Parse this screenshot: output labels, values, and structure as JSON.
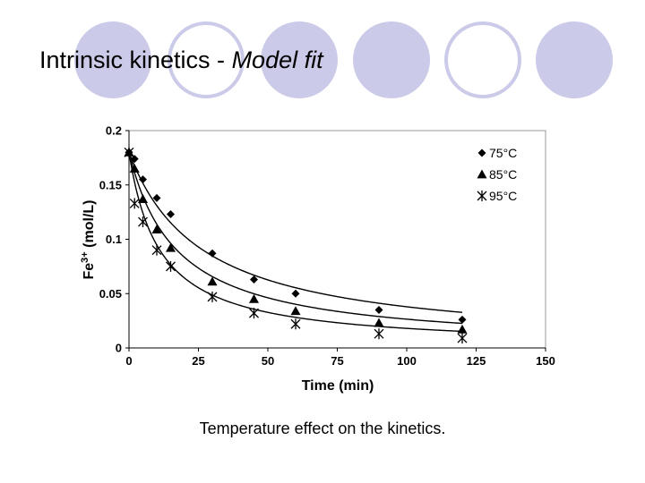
{
  "slide": {
    "title_main": "Intrinsic kinetics - ",
    "title_italic": "Model fit",
    "caption": "Temperature effect on the kinetics."
  },
  "colors": {
    "circle_fill": "#cbcbe9",
    "plot_border": "#9a9a9a",
    "text": "#000000"
  },
  "chart_data": {
    "type": "scatter",
    "title": "",
    "xlabel": "Time (min)",
    "ylabel_base": "Fe",
    "ylabel_sup": "3+",
    "ylabel_unit": " (mol/L)",
    "xlim": [
      0,
      150
    ],
    "ylim": [
      0,
      0.2
    ],
    "x_ticks": [
      "0",
      "25",
      "50",
      "75",
      "100",
      "125",
      "150"
    ],
    "y_ticks": [
      "0",
      "0.05",
      "0.1",
      "0.15",
      "0.2"
    ],
    "legend_position": "top-right",
    "series": [
      {
        "name": "75°C",
        "marker": "diamond",
        "points": [
          [
            0,
            0.18
          ],
          [
            2,
            0.174
          ],
          [
            5,
            0.155
          ],
          [
            10,
            0.138
          ],
          [
            15,
            0.123
          ],
          [
            30,
            0.087
          ],
          [
            45,
            0.063
          ],
          [
            60,
            0.05
          ],
          [
            90,
            0.035
          ],
          [
            120,
            0.026
          ]
        ],
        "fit_k": 0.0375
      },
      {
        "name": "85°C",
        "marker": "triangle",
        "points": [
          [
            0,
            0.18
          ],
          [
            2,
            0.165
          ],
          [
            5,
            0.137
          ],
          [
            10,
            0.109
          ],
          [
            15,
            0.092
          ],
          [
            30,
            0.061
          ],
          [
            45,
            0.045
          ],
          [
            60,
            0.034
          ],
          [
            90,
            0.023
          ],
          [
            120,
            0.017
          ]
        ],
        "fit_k": 0.058
      },
      {
        "name": "95°C",
        "marker": "asterisk",
        "points": [
          [
            0,
            0.18
          ],
          [
            2,
            0.133
          ],
          [
            5,
            0.116
          ],
          [
            10,
            0.09
          ],
          [
            15,
            0.075
          ],
          [
            30,
            0.047
          ],
          [
            45,
            0.032
          ],
          [
            60,
            0.022
          ],
          [
            90,
            0.013
          ],
          [
            120,
            0.009
          ]
        ],
        "fit_k": 0.09
      }
    ]
  }
}
